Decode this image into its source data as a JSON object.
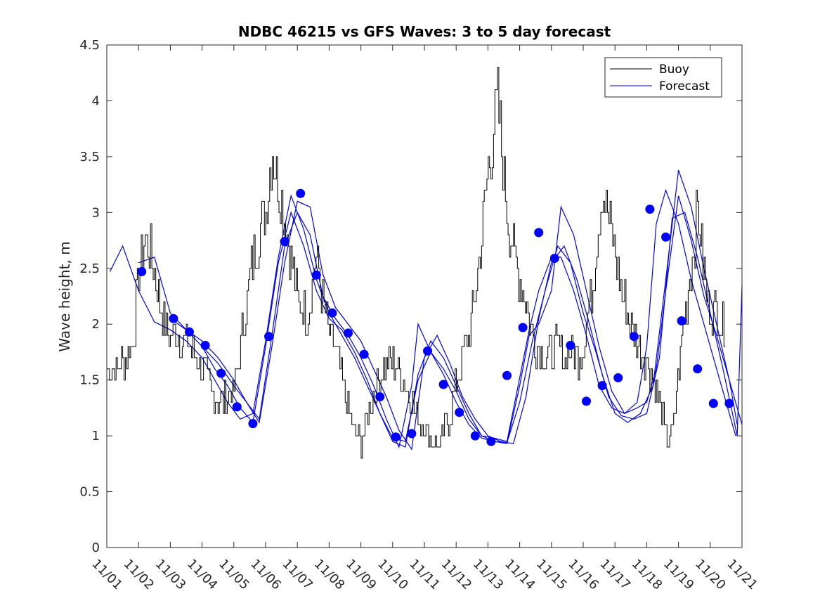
{
  "chart_data": {
    "type": "line",
    "title": "NDBC 46215 vs GFS Waves: 3 to 5 day forecast",
    "xlabel": "",
    "ylabel": "Wave height, m",
    "ylim": [
      0,
      4.5
    ],
    "xlim": [
      0,
      20
    ],
    "yticks": [
      0,
      0.5,
      1,
      1.5,
      2,
      2.5,
      3,
      3.5,
      4,
      4.5
    ],
    "ytick_labels": [
      "0",
      "0.5",
      "1",
      "1.5",
      "2",
      "2.5",
      "3",
      "3.5",
      "4",
      "4.5"
    ],
    "xtick_positions": [
      0,
      1,
      2,
      3,
      4,
      5,
      6,
      7,
      8,
      9,
      10,
      11,
      12,
      13,
      14,
      15,
      16,
      17,
      18,
      19,
      20
    ],
    "xtick_labels": [
      "11/01",
      "11/02",
      "11/03",
      "11/04",
      "11/05",
      "11/06",
      "11/07",
      "11/08",
      "11/09",
      "11/10",
      "11/11",
      "11/12",
      "11/13",
      "11/14",
      "11/15",
      "11/16",
      "11/17",
      "11/18",
      "11/19",
      "11/20",
      "11/21"
    ],
    "legend": {
      "location": "top-right",
      "entries": [
        {
          "name": "Buoy",
          "color": "#000000"
        },
        {
          "name": "Forecast",
          "color": "#0000ee"
        }
      ]
    },
    "colors": {
      "buoy": "#000000",
      "forecast": "#0000ee",
      "marker": "#0000ff"
    },
    "buoy_anchors": {
      "x": [
        0,
        0.3,
        0.6,
        0.85,
        1.0,
        1.2,
        1.4,
        1.6,
        1.8,
        2.0,
        2.3,
        2.6,
        3.0,
        3.3,
        3.6,
        4.0,
        4.3,
        4.6,
        5.0,
        5.2,
        5.5,
        5.7,
        6.0,
        6.3,
        6.6,
        6.85,
        7.0,
        7.2,
        7.4,
        7.6,
        7.8,
        8.0,
        8.3,
        8.7,
        9.0,
        9.3,
        9.6,
        9.9,
        10.2,
        10.5,
        10.8,
        11.1,
        11.4,
        11.7,
        12.0,
        12.3,
        12.6,
        12.9,
        13.2,
        13.5,
        13.8,
        14.0,
        14.2,
        14.4,
        14.6,
        14.8,
        15.0,
        15.3,
        15.6,
        15.9,
        16.2,
        16.5,
        16.8,
        17.1,
        17.4,
        17.6,
        17.8,
        18.0,
        18.3,
        18.6,
        18.9,
        19.2,
        19.5
      ],
      "y": [
        1.6,
        1.6,
        1.7,
        1.9,
        2.5,
        2.8,
        2.6,
        2.3,
        2.0,
        1.9,
        1.9,
        1.8,
        1.6,
        1.4,
        1.3,
        1.4,
        2.0,
        2.6,
        3.0,
        3.6,
        3.1,
        2.8,
        2.2,
        2.1,
        2.6,
        2.1,
        1.9,
        1.75,
        1.5,
        1.2,
        1.0,
        0.95,
        1.3,
        1.6,
        1.65,
        1.5,
        1.3,
        1.1,
        1.0,
        0.9,
        1.2,
        1.6,
        1.9,
        2.5,
        3.4,
        4.0,
        3.0,
        2.5,
        2.2,
        1.8,
        1.7,
        1.75,
        1.8,
        1.7,
        1.75,
        1.7,
        1.8,
        2.4,
        3.2,
        2.8,
        2.3,
        2.0,
        1.8,
        1.6,
        1.3,
        1.0,
        1.0,
        1.6,
        2.3,
        3.0,
        2.2,
        2.1,
        1.95
      ]
    },
    "forecast_runs": [
      {
        "x": [
          0.1,
          0.5,
          1.0,
          1.5,
          2.0,
          2.5,
          3.0,
          3.4,
          3.8,
          4.2,
          4.6,
          5.0,
          5.4,
          5.8,
          6.2,
          6.6,
          7.0,
          7.4,
          7.8,
          8.2,
          8.6,
          9.0,
          9.4,
          9.8,
          10.2,
          10.6,
          11.0,
          11.4,
          11.8,
          12.2,
          12.6,
          13.0,
          13.3,
          13.6,
          14.0,
          14.3,
          14.7,
          15.1,
          15.5,
          15.9,
          16.3,
          16.7,
          17.0,
          17.3,
          17.6,
          18.0,
          18.4,
          18.8,
          19.2,
          19.5,
          19.8
        ],
        "y": [
          2.47,
          2.7,
          2.3,
          2.02,
          1.95,
          1.85,
          1.7,
          1.5,
          1.3,
          1.15,
          1.2,
          1.85,
          2.6,
          3.15,
          2.85,
          2.4,
          2.1,
          1.9,
          1.7,
          1.45,
          1.2,
          0.98,
          0.95,
          1.5,
          1.75,
          1.6,
          1.4,
          1.15,
          1.0,
          0.98,
          0.95,
          1.52,
          1.95,
          2.3,
          2.6,
          2.6,
          2.3,
          1.9,
          1.45,
          1.25,
          1.2,
          1.3,
          1.8,
          2.9,
          3.2,
          2.9,
          2.4,
          2.0,
          1.6,
          1.3,
          1.0
        ]
      },
      {
        "x": [
          1.0,
          1.5,
          2.0,
          2.5,
          3.0,
          3.4,
          3.8,
          4.2,
          4.6,
          5.0,
          5.4,
          5.8,
          6.2,
          6.6,
          7.0,
          7.4,
          7.8,
          8.2,
          8.6,
          9.0,
          9.4,
          9.8,
          10.2,
          10.6,
          11.0,
          11.4,
          11.8,
          12.2,
          12.6,
          13.0,
          13.3,
          13.6,
          14.0,
          14.3,
          14.7,
          15.1,
          15.5,
          15.9,
          16.3,
          16.7,
          17.0,
          17.3,
          17.6,
          18.0,
          18.4,
          18.8,
          19.2,
          19.6,
          20.0
        ],
        "y": [
          2.55,
          2.6,
          2.1,
          1.95,
          1.8,
          1.6,
          1.45,
          1.25,
          1.12,
          1.8,
          2.55,
          3.0,
          2.7,
          2.3,
          2.05,
          1.95,
          1.75,
          1.5,
          1.2,
          0.95,
          0.9,
          1.55,
          1.85,
          1.7,
          1.45,
          1.2,
          1.0,
          0.95,
          0.93,
          1.45,
          1.9,
          2.0,
          2.3,
          3.05,
          2.8,
          2.3,
          1.8,
          1.4,
          1.2,
          1.25,
          1.3,
          1.6,
          2.3,
          3.15,
          2.75,
          2.25,
          1.9,
          1.5,
          1.1
        ]
      },
      {
        "x": [
          2.0,
          2.5,
          3.0,
          3.5,
          4.0,
          4.4,
          4.8,
          5.2,
          5.6,
          6.0,
          6.4,
          6.8,
          7.2,
          7.6,
          8.0,
          8.4,
          8.8,
          9.2,
          9.6,
          10.0,
          10.4,
          10.8,
          11.2,
          11.6,
          12.0,
          12.4,
          12.8,
          13.2,
          13.6,
          14.0,
          14.4,
          14.8,
          15.2,
          15.6,
          16.0,
          16.4,
          16.8,
          17.2,
          17.6,
          18.0,
          18.4,
          18.8,
          19.2,
          19.6,
          19.85
        ],
        "y": [
          2.05,
          1.95,
          1.85,
          1.7,
          1.5,
          1.3,
          1.12,
          1.8,
          2.55,
          3.1,
          3.05,
          2.45,
          2.15,
          2.0,
          1.85,
          1.6,
          1.35,
          1.05,
          0.88,
          1.7,
          1.9,
          1.65,
          1.35,
          1.15,
          1.0,
          0.95,
          0.93,
          1.35,
          2.05,
          2.55,
          2.7,
          2.4,
          2.0,
          1.55,
          1.2,
          1.12,
          1.2,
          1.45,
          2.4,
          3.38,
          3.05,
          2.5,
          2.0,
          1.5,
          1.1
        ]
      },
      {
        "x": [
          3.0,
          3.5,
          4.0,
          4.4,
          4.8,
          5.2,
          5.6,
          6.0,
          6.4,
          6.8,
          7.2,
          7.6,
          8.0,
          8.4,
          8.8,
          9.2,
          9.6,
          9.8,
          10.2,
          10.6,
          11.0,
          11.4,
          11.8,
          12.2,
          12.6,
          13.0,
          13.4,
          13.8,
          14.2,
          14.6,
          15.0,
          15.4,
          15.8,
          16.2,
          16.6,
          17.0,
          17.4,
          17.8,
          18.2,
          18.6,
          19.0,
          19.4,
          19.85,
          20.0
        ],
        "y": [
          1.8,
          1.65,
          1.45,
          1.3,
          1.15,
          1.9,
          2.7,
          3.0,
          2.8,
          2.25,
          2.05,
          1.9,
          1.7,
          1.45,
          1.15,
          0.9,
          1.45,
          2.0,
          1.75,
          1.55,
          1.3,
          1.1,
          0.98,
          0.95,
          0.94,
          1.3,
          1.85,
          2.3,
          2.7,
          2.55,
          2.1,
          1.75,
          1.35,
          1.18,
          1.15,
          1.2,
          1.7,
          2.95,
          3.0,
          2.6,
          2.1,
          1.6,
          1.0,
          2.35
        ]
      }
    ],
    "forecast_markers": {
      "x": [
        1.1,
        2.1,
        2.6,
        3.1,
        3.6,
        4.1,
        4.6,
        5.1,
        5.6,
        6.1,
        6.6,
        7.1,
        7.6,
        8.1,
        8.6,
        9.1,
        9.6,
        10.1,
        10.6,
        11.1,
        11.6,
        12.1,
        12.6,
        13.1,
        13.6,
        14.1,
        14.6,
        15.1,
        15.6,
        16.1,
        16.6,
        17.1,
        17.6,
        18.1,
        18.6,
        19.1,
        19.6
      ],
      "y": [
        2.47,
        2.05,
        1.93,
        1.81,
        1.56,
        1.26,
        1.11,
        1.89,
        2.74,
        3.17,
        2.44,
        2.1,
        1.92,
        1.73,
        1.35,
        0.99,
        1.02,
        1.76,
        1.46,
        1.21,
        1.0,
        0.95,
        1.54,
        1.97,
        2.82,
        2.59,
        1.81,
        1.31,
        1.45,
        1.52,
        1.89,
        3.03,
        2.78,
        2.03,
        1.6,
        1.29,
        1.29
      ]
    }
  }
}
